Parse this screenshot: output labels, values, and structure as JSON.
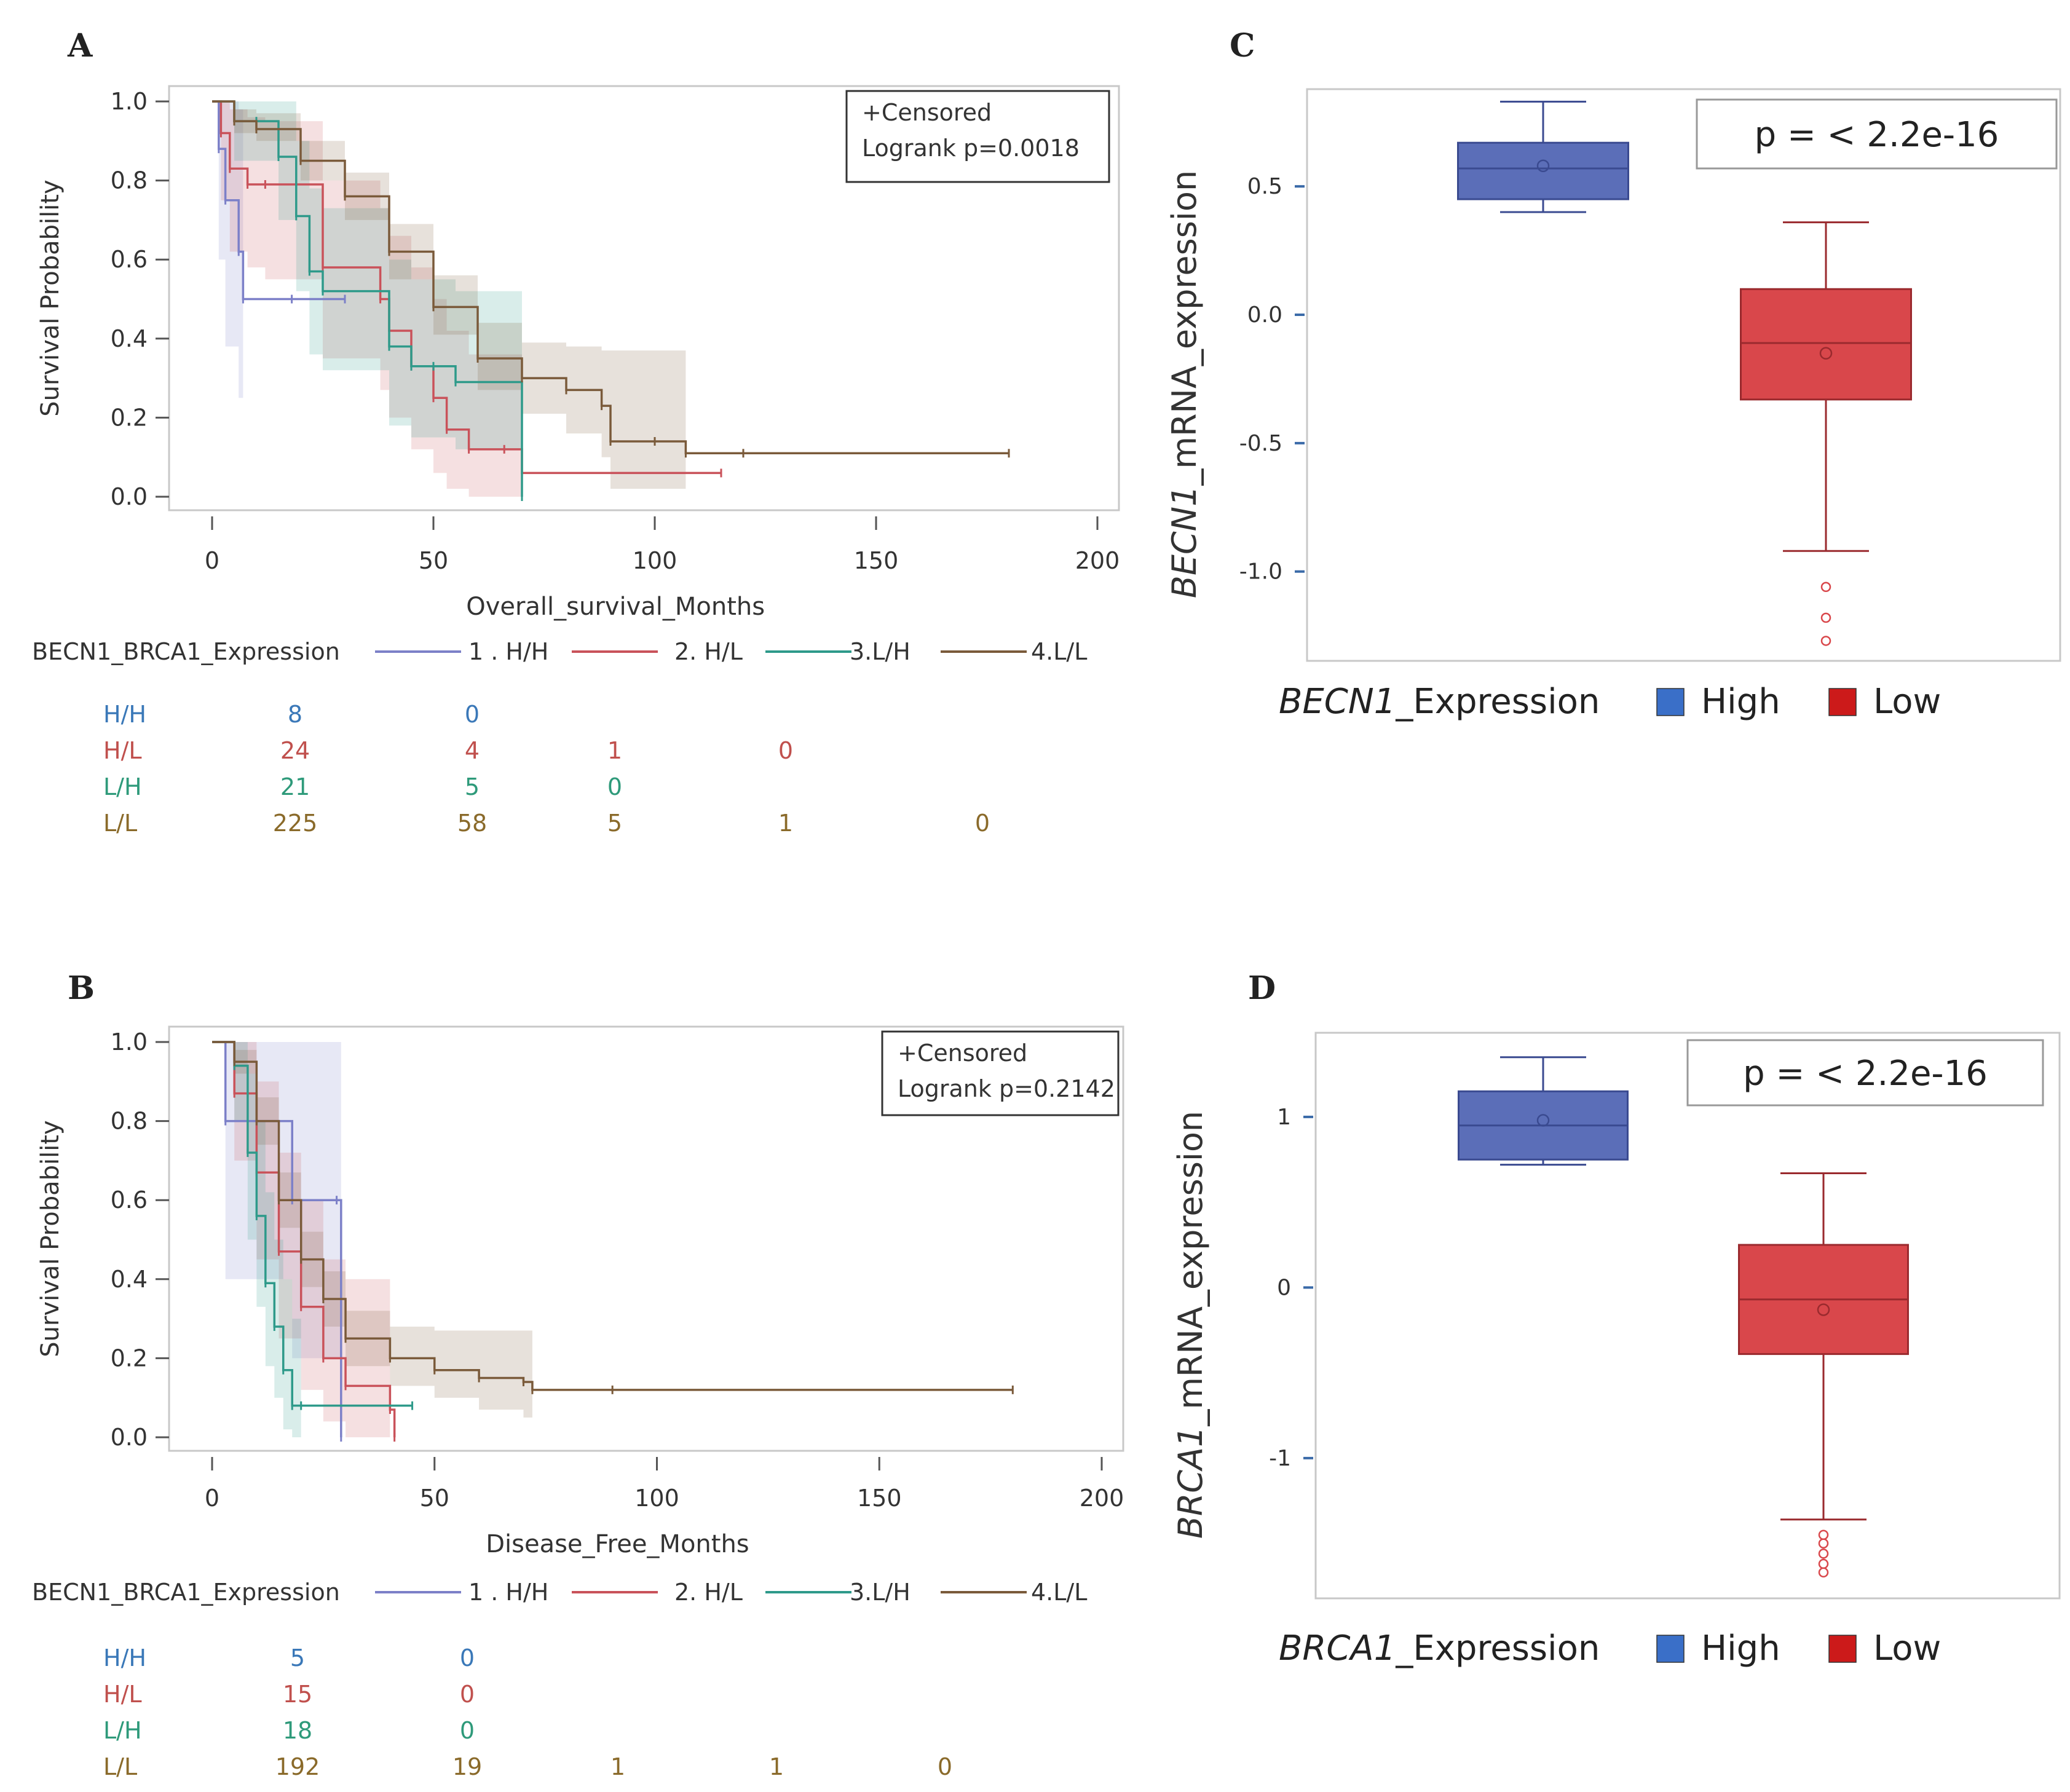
{
  "panels": [
    {
      "id": "A",
      "type": "km",
      "letter": "A",
      "chart_data": {
        "type": "line",
        "title": "",
        "xlabel": "Overall_survival_Months",
        "ylabel": "Survival Probability",
        "xlim": [
          0,
          200
        ],
        "ylim": [
          0,
          1
        ],
        "xticks": [
          "0",
          "50",
          "100",
          "150",
          "200"
        ],
        "yticks": [
          "0.0",
          "0.2",
          "0.4",
          "0.6",
          "0.8",
          "1.0"
        ],
        "annotation": [
          "+Censored",
          "Logrank p=0.0018"
        ],
        "legend_title": "BECN1_BRCA1_Expression",
        "series": [
          {
            "name": "1 . H/H",
            "color": "#7c80c8",
            "x": [
              0,
              1.5,
              3,
              6,
              7,
              18,
              30
            ],
            "y": [
              1.0,
              0.88,
              0.75,
              0.62,
              0.5,
              0.5,
              0.5
            ],
            "lower": [
              1.0,
              0.6,
              0.38,
              0.25,
              0.12,
              0.12,
              0.12
            ],
            "upper": [
              1.0,
              1.0,
              1.0,
              0.98,
              0.9,
              0.9,
              0.9
            ],
            "band_end": 7
          },
          {
            "name": "2. H/L",
            "color": "#c9525a",
            "x": [
              0,
              2,
              4,
              8,
              12,
              25,
              38,
              40,
              45,
              50,
              53,
              58,
              66,
              70,
              115
            ],
            "y": [
              1.0,
              0.92,
              0.83,
              0.79,
              0.79,
              0.58,
              0.5,
              0.42,
              0.33,
              0.25,
              0.17,
              0.12,
              0.12,
              0.06,
              0.06
            ],
            "lower": [
              1.0,
              0.75,
              0.62,
              0.58,
              0.55,
              0.35,
              0.27,
              0.2,
              0.12,
              0.06,
              0.02,
              0.0,
              0.0,
              0.0,
              0.0
            ],
            "upper": [
              1.0,
              1.0,
              0.98,
              0.96,
              0.95,
              0.8,
              0.73,
              0.66,
              0.58,
              0.5,
              0.42,
              0.36,
              0.36,
              0.36,
              0.36
            ],
            "band_end": 70
          },
          {
            "name": "3.L/H",
            "color": "#2e9a8a",
            "x": [
              0,
              5,
              10,
              15,
              19,
              22,
              25,
              40,
              45,
              50,
              55,
              70
            ],
            "y": [
              1.0,
              0.95,
              0.95,
              0.86,
              0.71,
              0.57,
              0.52,
              0.38,
              0.33,
              0.33,
              0.29,
              0.0
            ],
            "lower": [
              1.0,
              0.85,
              0.85,
              0.7,
              0.52,
              0.36,
              0.32,
              0.18,
              0.15,
              0.15,
              0.12,
              0.0
            ],
            "upper": [
              1.0,
              1.0,
              1.0,
              1.0,
              0.9,
              0.78,
              0.73,
              0.6,
              0.55,
              0.55,
              0.52,
              0.52
            ],
            "band_end": 70
          },
          {
            "name": "4.L/L",
            "color": "#7a5a3a",
            "x": [
              0,
              5,
              10,
              20,
              30,
              40,
              50,
              60,
              70,
              80,
              88,
              90,
              100,
              107,
              120,
              180
            ],
            "y": [
              1.0,
              0.95,
              0.93,
              0.85,
              0.76,
              0.62,
              0.48,
              0.35,
              0.3,
              0.27,
              0.23,
              0.14,
              0.14,
              0.11,
              0.11,
              0.11
            ],
            "lower": [
              1.0,
              0.92,
              0.9,
              0.8,
              0.7,
              0.55,
              0.41,
              0.27,
              0.21,
              0.16,
              0.1,
              0.02,
              0.02,
              0.0,
              0.0,
              0.0
            ],
            "upper": [
              1.0,
              0.98,
              0.97,
              0.9,
              0.82,
              0.69,
              0.56,
              0.44,
              0.39,
              0.38,
              0.37,
              0.37,
              0.37,
              0.37,
              0.37,
              0.37
            ],
            "band_end": 107
          }
        ]
      },
      "risk_table": [
        {
          "label": "H/H",
          "color": "#3a78b8",
          "values": [
            "8",
            "0"
          ]
        },
        {
          "label": "H/L",
          "color": "#c0504d",
          "values": [
            "24",
            "4",
            "1",
            "0"
          ]
        },
        {
          "label": "L/H",
          "color": "#2e9a7a",
          "values": [
            "21",
            "5",
            "0"
          ]
        },
        {
          "label": "L/L",
          "color": "#8a6a2a",
          "values": [
            "225",
            "58",
            "5",
            "1",
            "0"
          ]
        }
      ]
    },
    {
      "id": "B",
      "type": "km",
      "letter": "B",
      "chart_data": {
        "type": "line",
        "title": "",
        "xlabel": "Disease_Free_Months",
        "ylabel": "Survival Probability",
        "xlim": [
          0,
          200
        ],
        "ylim": [
          0,
          1
        ],
        "xticks": [
          "0",
          "50",
          "100",
          "150",
          "200"
        ],
        "yticks": [
          "0.0",
          "0.2",
          "0.4",
          "0.6",
          "0.8",
          "1.0"
        ],
        "annotation": [
          "+Censored",
          "Logrank p=0.2142"
        ],
        "legend_title": "BECN1_BRCA1_Expression",
        "series": [
          {
            "name": "1 . H/H",
            "color": "#7c80c8",
            "x": [
              0,
              3,
              8,
              18,
              28,
              29
            ],
            "y": [
              1.0,
              0.8,
              0.8,
              0.6,
              0.6,
              0.0
            ],
            "lower": [
              1.0,
              0.4,
              0.4,
              0.2,
              0.2,
              0.0
            ],
            "upper": [
              1.0,
              1.0,
              1.0,
              1.0,
              1.0,
              1.0
            ],
            "band_end": 29
          },
          {
            "name": "2. H/L",
            "color": "#c9525a",
            "x": [
              0,
              5,
              10,
              15,
              20,
              25,
              30,
              40,
              41
            ],
            "y": [
              1.0,
              0.87,
              0.67,
              0.47,
              0.33,
              0.2,
              0.13,
              0.07,
              0.0
            ],
            "lower": [
              1.0,
              0.7,
              0.45,
              0.25,
              0.12,
              0.04,
              0.0,
              0.0,
              0.0
            ],
            "upper": [
              1.0,
              1.0,
              0.9,
              0.72,
              0.6,
              0.45,
              0.4,
              0.3,
              0.3
            ],
            "band_end": 40
          },
          {
            "name": "3.L/H",
            "color": "#2e9a8a",
            "x": [
              0,
              5,
              8,
              10,
              12,
              14,
              16,
              18,
              20,
              45
            ],
            "y": [
              1.0,
              0.94,
              0.72,
              0.56,
              0.39,
              0.28,
              0.17,
              0.08,
              0.08,
              0.08
            ],
            "lower": [
              1.0,
              0.8,
              0.5,
              0.33,
              0.18,
              0.1,
              0.02,
              0.0,
              0.0,
              0.0
            ],
            "upper": [
              1.0,
              1.0,
              0.92,
              0.8,
              0.62,
              0.5,
              0.4,
              0.3,
              0.3,
              0.3
            ],
            "band_end": 20
          },
          {
            "name": "4.L/L",
            "color": "#7a5a3a",
            "x": [
              0,
              5,
              10,
              15,
              20,
              25,
              30,
              40,
              50,
              60,
              70,
              72,
              90,
              180
            ],
            "y": [
              1.0,
              0.95,
              0.8,
              0.6,
              0.45,
              0.35,
              0.25,
              0.2,
              0.17,
              0.15,
              0.14,
              0.12,
              0.12,
              0.12
            ],
            "lower": [
              1.0,
              0.92,
              0.74,
              0.53,
              0.38,
              0.28,
              0.18,
              0.13,
              0.1,
              0.07,
              0.05,
              0.0,
              0.0,
              0.0
            ],
            "upper": [
              1.0,
              0.98,
              0.86,
              0.67,
              0.52,
              0.42,
              0.32,
              0.28,
              0.27,
              0.27,
              0.27,
              0.27,
              0.27,
              0.27
            ],
            "band_end": 72
          }
        ]
      },
      "risk_table": [
        {
          "label": "H/H",
          "color": "#3a78b8",
          "values": [
            "5",
            "0"
          ]
        },
        {
          "label": "H/L",
          "color": "#c0504d",
          "values": [
            "15",
            "0"
          ]
        },
        {
          "label": "L/H",
          "color": "#2e9a7a",
          "values": [
            "18",
            "0"
          ]
        },
        {
          "label": "L/L",
          "color": "#8a6a2a",
          "values": [
            "192",
            "19",
            "1",
            "1",
            "0"
          ]
        }
      ]
    },
    {
      "id": "C",
      "type": "box",
      "letter": "C",
      "chart_data": {
        "type": "box",
        "ylabel_italic": "BECN1",
        "ylabel_rest": "_mRNA_expression",
        "ylim": [
          -1.3,
          0.85
        ],
        "yticks": [
          {
            "v": 0.5,
            "t": "0.5"
          },
          {
            "v": 0.0,
            "t": "0.0"
          },
          {
            "v": -0.5,
            "t": "-0.5"
          },
          {
            "v": -1.0,
            "t": "-1.0"
          }
        ],
        "annotation": "p = < 2.2e-16",
        "legend_italic": "BECN1",
        "legend_rest": "_Expression",
        "legend_items": [
          "High",
          "Low"
        ],
        "boxes": [
          {
            "name": "High",
            "fill": "#5b6eb8",
            "stroke": "#3a4a90",
            "whisker_low": 0.4,
            "q1": 0.45,
            "median": 0.57,
            "q3": 0.67,
            "whisker_high": 0.83,
            "mean": 0.58,
            "outliers": []
          },
          {
            "name": "Low",
            "fill": "#d9474b",
            "stroke": "#9a2a2e",
            "whisker_low": -0.92,
            "q1": -0.33,
            "median": -0.11,
            "q3": 0.1,
            "whisker_high": 0.36,
            "mean": -0.15,
            "outliers": [
              -1.06,
              -1.18,
              -1.27
            ]
          }
        ]
      }
    },
    {
      "id": "D",
      "type": "box",
      "letter": "D",
      "chart_data": {
        "type": "box",
        "ylabel_italic": "BRCA1",
        "ylabel_rest": "_mRNA_expression",
        "ylim": [
          -1.75,
          1.45
        ],
        "yticks": [
          {
            "v": 1,
            "t": "1"
          },
          {
            "v": 0,
            "t": "0"
          },
          {
            "v": -1,
            "t": "-1"
          }
        ],
        "annotation": "p = < 2.2e-16",
        "legend_italic": "BRCA1",
        "legend_rest": "_Expression",
        "legend_items": [
          "High",
          "Low"
        ],
        "boxes": [
          {
            "name": "High",
            "fill": "#5b6eb8",
            "stroke": "#3a4a90",
            "whisker_low": 0.72,
            "q1": 0.75,
            "median": 0.95,
            "q3": 1.15,
            "whisker_high": 1.35,
            "mean": 0.98,
            "outliers": []
          },
          {
            "name": "Low",
            "fill": "#d9474b",
            "stroke": "#9a2a2e",
            "whisker_low": -1.36,
            "q1": -0.39,
            "median": -0.07,
            "q3": 0.25,
            "whisker_high": 0.67,
            "mean": -0.13,
            "outliers": [
              -1.45,
              -1.5,
              -1.56,
              -1.62,
              -1.67
            ]
          }
        ]
      }
    }
  ]
}
